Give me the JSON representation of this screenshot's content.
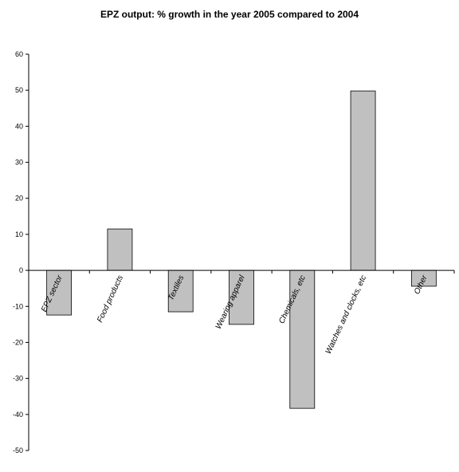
{
  "chart_data": {
    "type": "bar",
    "title": "EPZ output: % growth in the year 2005 compared to 2004",
    "categories": [
      "EPZ sector",
      "Food products",
      "Textiles",
      "Wearing apparel",
      "Chemicals, etc",
      "Watches and clocks, etc",
      "Other"
    ],
    "values": [
      -12.4,
      11.5,
      -11.5,
      -15,
      -38.3,
      49.8,
      -4.4
    ],
    "color": "#c0c0c0",
    "ylim": [
      -50,
      60
    ],
    "yticks": [
      -50,
      -40,
      -30,
      -20,
      -10,
      0,
      10,
      20,
      30,
      40,
      50,
      60
    ],
    "grid": false
  }
}
